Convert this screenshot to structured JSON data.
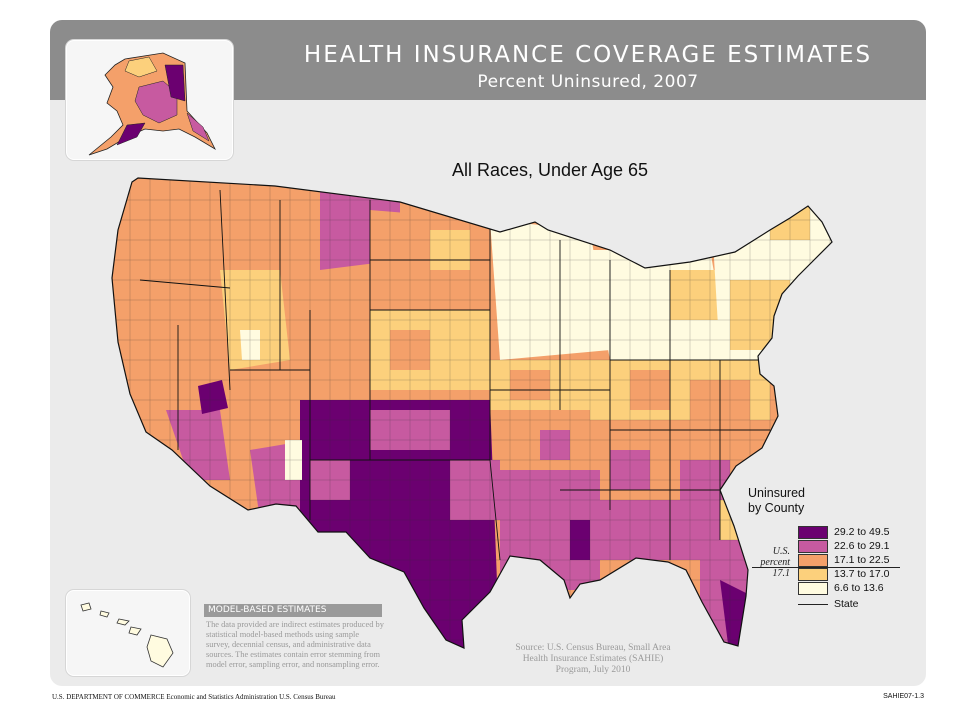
{
  "header": {
    "title": "HEALTH INSURANCE COVERAGE ESTIMATES",
    "subtitle": "Percent Uninsured, 2007"
  },
  "map": {
    "title": "All Races, Under Age 65",
    "colors": {
      "panel": "#ebebeb",
      "banner": "#8c8c8c",
      "class1": "#6b0070",
      "class2": "#c75aa0",
      "class3": "#f4a06a",
      "class4": "#fcd07c",
      "class5": "#fffbe0"
    }
  },
  "legend": {
    "title_line1": "Uninsured",
    "title_line2": "by County",
    "classes": [
      {
        "label": "29.2 to 49.5",
        "color": "#6b0070"
      },
      {
        "label": "22.6 to 29.1",
        "color": "#c75aa0"
      },
      {
        "label": "17.1 to 22.5",
        "color": "#f4a06a"
      },
      {
        "label": "13.7 to 17.0",
        "color": "#fcd07c"
      },
      {
        "label": "6.6 to 13.6",
        "color": "#fffbe0"
      }
    ],
    "us_percent_line1": "U.S.",
    "us_percent_line2": "percent",
    "us_percent_value": "17.1",
    "state_label": "State"
  },
  "notes": {
    "model_heading": "MODEL-BASED ESTIMATES",
    "model_text": "The data provided are indirect estimates produced by statistical model-based methods using sample survey, decennial census, and administrative data sources. The estimates contain error stemming from model error, sampling error, and nonsampling error.",
    "source": "Source: U.S. Census Bureau, Small Area Health Insurance Estimates (SAHIE) Program, July 2010"
  },
  "footer": {
    "left": "U.S. DEPARTMENT OF COMMERCE  Economic and Statistics Administration  U.S. Census Bureau",
    "right": "SAHIE07-1.3"
  }
}
